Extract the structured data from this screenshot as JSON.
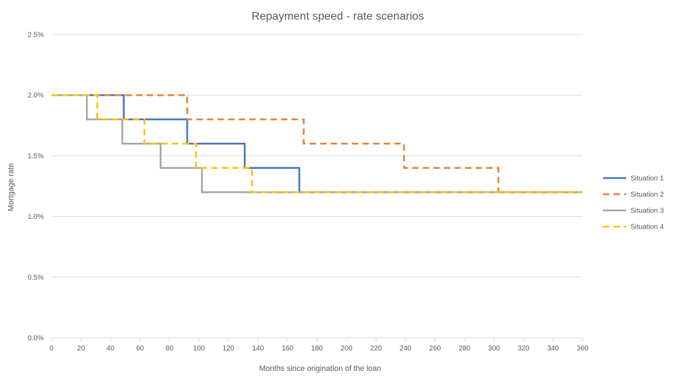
{
  "chart_data": {
    "type": "line",
    "title": "Repayment speed - rate scenarios",
    "xlabel": "Months since origination of the loan",
    "ylabel": "Mortgage rate",
    "xlim": [
      0,
      360
    ],
    "ylim": [
      0,
      0.025
    ],
    "x_ticks": [
      0,
      20,
      40,
      60,
      80,
      100,
      120,
      140,
      160,
      180,
      200,
      220,
      240,
      260,
      280,
      300,
      320,
      340,
      360
    ],
    "y_ticks": [
      "0.0%",
      "0.5%",
      "1.0%",
      "1.5%",
      "2.0%",
      "2.5%"
    ],
    "y_tick_values": [
      0,
      0.005,
      0.01,
      0.015,
      0.02,
      0.025
    ],
    "grid": "horizontal",
    "legend_position": "right",
    "series": [
      {
        "name": "Situation 1",
        "color": "#4472c4",
        "dash": "solid",
        "step_x": [
          0,
          49,
          92,
          131,
          168,
          360
        ],
        "step_y": [
          0.02,
          0.018,
          0.016,
          0.014,
          0.012
        ]
      },
      {
        "name": "Situation 2",
        "color": "#ed7d31",
        "dash": "dashed",
        "step_x": [
          0,
          92,
          171,
          239,
          303,
          360
        ],
        "step_y": [
          0.02,
          0.018,
          0.016,
          0.014,
          0.012
        ]
      },
      {
        "name": "Situation 3",
        "color": "#a5a5a5",
        "dash": "solid",
        "step_x": [
          0,
          24,
          48,
          74,
          102,
          360
        ],
        "step_y": [
          0.02,
          0.018,
          0.016,
          0.014,
          0.012
        ]
      },
      {
        "name": "Situation 4",
        "color": "#ffc000",
        "dash": "dashed",
        "step_x": [
          0,
          31,
          63,
          98,
          136,
          360
        ],
        "step_y": [
          0.02,
          0.018,
          0.016,
          0.014,
          0.012
        ]
      }
    ]
  }
}
